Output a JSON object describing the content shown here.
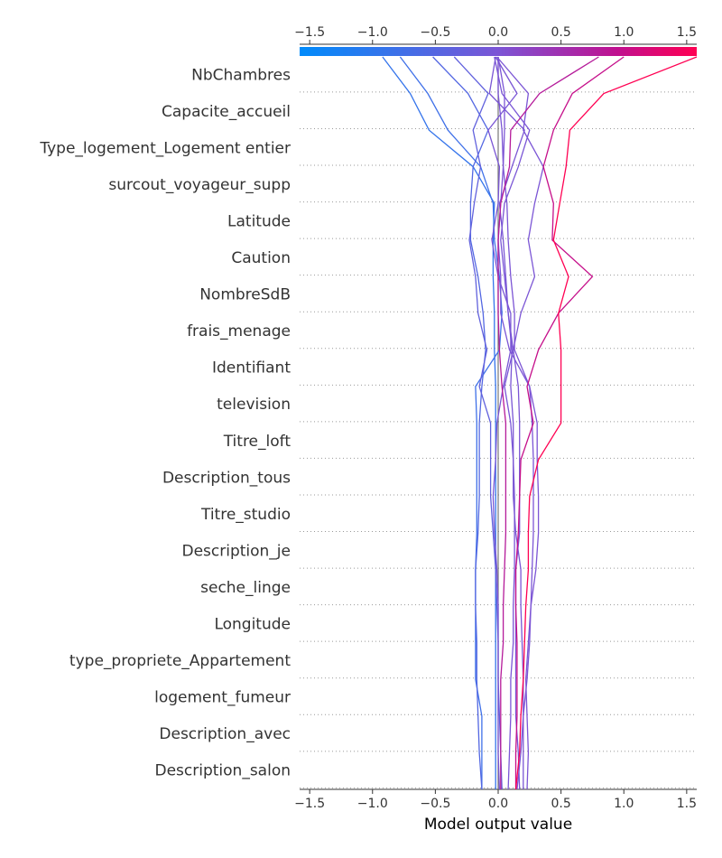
{
  "chart_data": {
    "type": "line",
    "xlabel": "Model output value",
    "xlim": [
      -1.58,
      1.58
    ],
    "x_ticks": [
      -1.5,
      -1.0,
      -0.5,
      0.0,
      0.5,
      1.0,
      1.5
    ],
    "x_tick_labels": [
      "−1.5",
      "−1.0",
      "−0.5",
      "0.0",
      "0.5",
      "1.0",
      "1.5"
    ],
    "base_value": 0.0,
    "features": [
      "NbChambres",
      "Capacite_accueil",
      "Type_logement_Logement entier",
      "surcout_voyageur_supp",
      "Latitude",
      "Caution",
      "NombreSdB",
      "frais_menage",
      "Identifiant",
      "television",
      "Titre_loft",
      "Description_tous",
      "Titre_studio",
      "Description_je",
      "seche_linge",
      "Longitude",
      "type_propriete_Appartement",
      "logement_fumeur",
      "Description_avec",
      "Description_salon"
    ],
    "colorbar": {
      "range": [
        -1.58,
        1.58
      ],
      "color_low": "#008bfb",
      "color_high": "#ff0052"
    },
    "series": [
      {
        "values": [
          -0.92,
          -0.7,
          -0.55,
          -0.2,
          -0.03,
          -0.04,
          -0.04,
          -0.03,
          -0.03,
          -0.02,
          -0.02,
          -0.02,
          -0.02,
          -0.02,
          -0.02,
          -0.02,
          -0.02,
          -0.02,
          -0.02,
          -0.02,
          -0.02
        ]
      },
      {
        "values": [
          -0.78,
          -0.56,
          -0.4,
          -0.14,
          -0.04,
          -0.03,
          0.01,
          0.03,
          0.01,
          -0.18,
          -0.17,
          -0.17,
          -0.17,
          -0.17,
          -0.18,
          -0.18,
          -0.18,
          -0.18,
          -0.13,
          -0.13,
          -0.13
        ]
      },
      {
        "values": [
          -0.52,
          -0.24,
          -0.08,
          -0.2,
          -0.22,
          -0.22,
          -0.16,
          -0.12,
          -0.1,
          -0.13,
          -0.15,
          -0.15,
          -0.15,
          -0.16,
          -0.18,
          -0.18,
          -0.17,
          -0.17,
          -0.16,
          -0.15,
          -0.13
        ]
      },
      {
        "values": [
          -0.35,
          -0.08,
          -0.2,
          -0.14,
          -0.19,
          -0.23,
          -0.18,
          -0.16,
          -0.09,
          -0.15,
          -0.06,
          -0.06,
          -0.06,
          -0.04,
          -0.02,
          -0.01,
          0.0,
          0.0,
          0.01,
          0.02,
          0.03
        ]
      },
      {
        "values": [
          -0.02,
          0.15,
          -0.08,
          0.01,
          0.0,
          -0.05,
          0.0,
          0.1,
          0.1,
          0.04,
          -0.01,
          -0.02,
          -0.04,
          -0.03,
          -0.01,
          0.0,
          0.0,
          0.0,
          0.0,
          0.0,
          0.01
        ]
      },
      {
        "values": [
          -0.03,
          0.03,
          0.25,
          0.16,
          0.05,
          0.02,
          0.05,
          0.08,
          0.12,
          0.05,
          0.1,
          0.12,
          0.13,
          0.13,
          0.13,
          0.12,
          0.12,
          0.1,
          0.1,
          0.09,
          0.08
        ]
      },
      {
        "values": [
          -0.02,
          -0.07,
          0.21,
          0.11,
          0.01,
          0.04,
          0.06,
          0.08,
          0.11,
          0.1,
          0.12,
          0.12,
          0.12,
          0.14,
          0.18,
          0.18,
          0.19,
          0.2,
          0.2,
          0.2,
          0.2
        ]
      },
      {
        "values": [
          -0.01,
          0.24,
          0.2,
          0.36,
          0.29,
          0.24,
          0.29,
          0.18,
          0.12,
          0.16,
          0.17,
          0.17,
          0.17,
          0.17,
          0.14,
          0.14,
          0.14,
          0.14,
          0.14,
          0.16,
          0.17
        ]
      },
      {
        "values": [
          0.0,
          0.05,
          0.05,
          0.04,
          0.07,
          0.08,
          0.1,
          0.13,
          0.13,
          0.25,
          0.27,
          0.28,
          0.28,
          0.28,
          0.27,
          0.26,
          0.25,
          0.23,
          0.2,
          0.18,
          0.15
        ]
      },
      {
        "values": [
          0.0,
          0.0,
          0.03,
          0.04,
          0.02,
          0.0,
          0.02,
          0.02,
          0.09,
          0.25,
          0.31,
          0.31,
          0.32,
          0.32,
          0.3,
          0.26,
          0.24,
          0.22,
          0.23,
          0.24,
          0.23
        ]
      },
      {
        "values": [
          0.8,
          0.33,
          0.1,
          0.09,
          0.02,
          0.0,
          0.0,
          0.0,
          0.01,
          0.03,
          0.06,
          0.06,
          0.06,
          0.06,
          0.05,
          0.04,
          0.04,
          0.02,
          0.02,
          0.02,
          0.02
        ]
      },
      {
        "values": [
          1.0,
          0.59,
          0.44,
          0.36,
          0.44,
          0.43,
          0.75,
          0.48,
          0.32,
          0.23,
          0.28,
          0.18,
          0.17,
          0.16,
          0.14,
          0.14,
          0.15,
          0.15,
          0.15,
          0.14,
          0.14
        ]
      },
      {
        "values": [
          1.58,
          0.84,
          0.57,
          0.54,
          0.49,
          0.44,
          0.56,
          0.48,
          0.5,
          0.5,
          0.5,
          0.32,
          0.25,
          0.24,
          0.24,
          0.22,
          0.21,
          0.2,
          0.18,
          0.17,
          0.14
        ]
      }
    ]
  }
}
